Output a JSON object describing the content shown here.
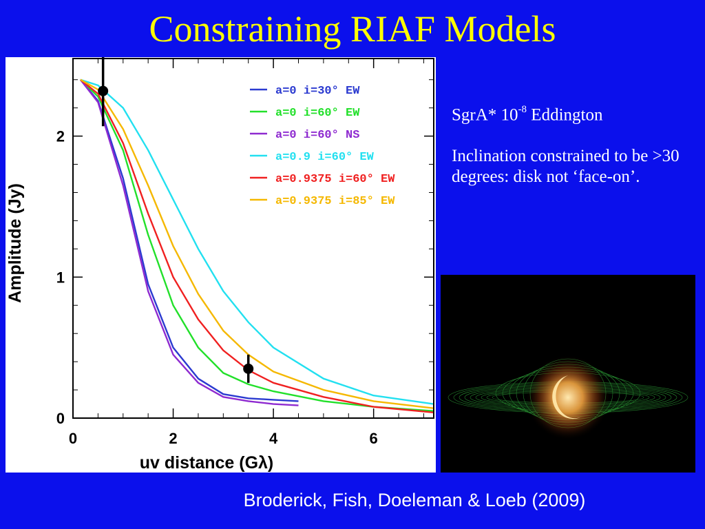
{
  "slide": {
    "title": "Constraining RIAF Models",
    "side_text": {
      "line1_prefix": "SgrA* 10",
      "line1_sup": "-8",
      "line1_suffix": " Eddington",
      "paragraph2": "Inclination constrained to be >30 degrees: disk not ‘face-on’."
    },
    "citation": "Broderick, Fish, Doeleman & Loeb (2009)",
    "colors": {
      "background": "#0b10ec",
      "title": "#ffff00"
    }
  },
  "chart_data": {
    "type": "line",
    "xlabel": "uv distance (Gλ)",
    "ylabel": "Amplitude (Jy)",
    "xlim": [
      0,
      7.2
    ],
    "ylim": [
      0,
      2.55
    ],
    "xticks": [
      0,
      2,
      4,
      6
    ],
    "yticks": [
      0,
      1,
      2
    ],
    "legend_position": "top-right",
    "series": [
      {
        "name": "a=0 i=30° EW",
        "color": "#2b3ad0",
        "x": [
          0.15,
          0.5,
          1.0,
          1.5,
          2.0,
          2.5,
          3.0,
          3.5,
          4.0,
          4.5
        ],
        "y": [
          2.4,
          2.25,
          1.7,
          0.95,
          0.5,
          0.28,
          0.17,
          0.14,
          0.13,
          0.12
        ]
      },
      {
        "name": "a=0 i=60° EW",
        "color": "#22e02a",
        "x": [
          0.15,
          0.5,
          1.0,
          1.5,
          2.0,
          2.5,
          3.0,
          3.5,
          4.0,
          5.0,
          6.0,
          7.2
        ],
        "y": [
          2.4,
          2.28,
          1.9,
          1.3,
          0.8,
          0.5,
          0.32,
          0.24,
          0.19,
          0.12,
          0.08,
          0.05
        ]
      },
      {
        "name": "a=0 i=60° NS",
        "color": "#8e2ad0",
        "x": [
          0.15,
          0.5,
          1.0,
          1.5,
          2.0,
          2.5,
          3.0,
          3.5,
          4.0,
          4.5
        ],
        "y": [
          2.4,
          2.24,
          1.65,
          0.9,
          0.45,
          0.25,
          0.15,
          0.12,
          0.1,
          0.09
        ]
      },
      {
        "name": "a=0.9 i=60° EW",
        "color": "#22e0f0",
        "x": [
          0.15,
          0.5,
          1.0,
          1.5,
          2.0,
          2.5,
          3.0,
          3.5,
          4.0,
          5.0,
          6.0,
          7.2
        ],
        "y": [
          2.4,
          2.36,
          2.2,
          1.9,
          1.55,
          1.2,
          0.9,
          0.68,
          0.5,
          0.28,
          0.16,
          0.1
        ]
      },
      {
        "name": "a=0.9375 i=60° EW",
        "color": "#f02020",
        "x": [
          0.15,
          0.5,
          1.0,
          1.5,
          2.0,
          2.5,
          3.0,
          3.5,
          4.0,
          5.0,
          6.0,
          7.2
        ],
        "y": [
          2.4,
          2.3,
          1.95,
          1.45,
          1.0,
          0.7,
          0.48,
          0.34,
          0.25,
          0.15,
          0.08,
          0.04
        ]
      },
      {
        "name": "a=0.9375 i=85° EW",
        "color": "#f5b800",
        "x": [
          0.15,
          0.5,
          1.0,
          1.5,
          2.0,
          2.5,
          3.0,
          3.5,
          4.0,
          5.0,
          6.0,
          7.2
        ],
        "y": [
          2.4,
          2.33,
          2.05,
          1.65,
          1.22,
          0.88,
          0.62,
          0.45,
          0.33,
          0.2,
          0.12,
          0.07
        ]
      }
    ],
    "data_points": [
      {
        "x": 0.6,
        "y": 2.32,
        "err": 0.25
      },
      {
        "x": 3.5,
        "y": 0.35,
        "err": 0.1
      }
    ]
  }
}
